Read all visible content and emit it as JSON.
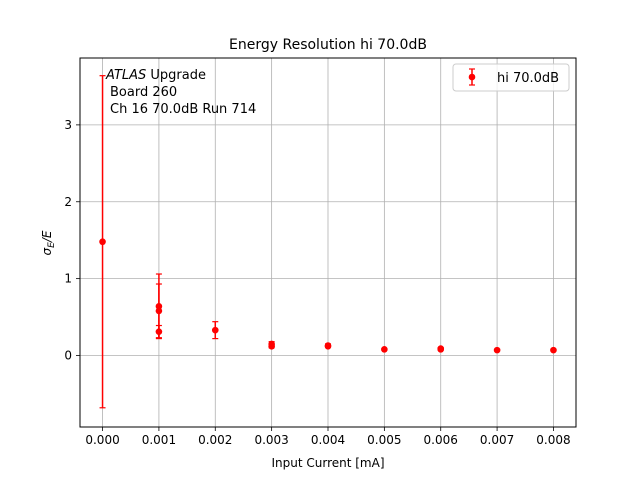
{
  "chart_data": {
    "type": "scatter",
    "title": "Energy Resolution hi 70.0dB",
    "xlabel": "Input Current [mA]",
    "ylabel_main": "σ",
    "ylabel_sub": "E",
    "ylabel_tail": "/E",
    "xlim": [
      -0.0004,
      0.0084
    ],
    "ylim": [
      -0.93,
      3.87
    ],
    "xticks": [
      0.0,
      0.001,
      0.002,
      0.003,
      0.004,
      0.005,
      0.006,
      0.007,
      0.008
    ],
    "xtick_labels": [
      "0.000",
      "0.001",
      "0.002",
      "0.003",
      "0.004",
      "0.005",
      "0.006",
      "0.007",
      "0.008"
    ],
    "yticks": [
      0,
      1,
      2,
      3
    ],
    "ytick_labels": [
      "0",
      "1",
      "2",
      "3"
    ],
    "grid": true,
    "legend_position": "top-right",
    "annotation": {
      "line1_italic": "ATLAS",
      "line1_rest": " Upgrade",
      "line2": "Board 260",
      "line3": "Ch 16 70.0dB  Run 714"
    },
    "series": [
      {
        "name": "hi 70.0dB",
        "color": "#ff0000",
        "points": [
          {
            "x": 0.0,
            "y": 1.48,
            "yerr_low": 2.16,
            "yerr_high": 2.16
          },
          {
            "x": 0.001,
            "y": 0.64,
            "yerr_low": 0.42,
            "yerr_high": 0.42
          },
          {
            "x": 0.001,
            "y": 0.58,
            "yerr_low": 0.35,
            "yerr_high": 0.35
          },
          {
            "x": 0.001,
            "y": 0.31,
            "yerr_low": 0.08,
            "yerr_high": 0.08
          },
          {
            "x": 0.002,
            "y": 0.33,
            "yerr_low": 0.11,
            "yerr_high": 0.11
          },
          {
            "x": 0.003,
            "y": 0.15,
            "yerr_low": 0.03,
            "yerr_high": 0.03
          },
          {
            "x": 0.003,
            "y": 0.12,
            "yerr_low": 0.02,
            "yerr_high": 0.02
          },
          {
            "x": 0.004,
            "y": 0.13,
            "yerr_low": 0.02,
            "yerr_high": 0.02
          },
          {
            "x": 0.004,
            "y": 0.12,
            "yerr_low": 0.01,
            "yerr_high": 0.01
          },
          {
            "x": 0.005,
            "y": 0.08,
            "yerr_low": 0.01,
            "yerr_high": 0.01
          },
          {
            "x": 0.006,
            "y": 0.09,
            "yerr_low": 0.01,
            "yerr_high": 0.01
          },
          {
            "x": 0.006,
            "y": 0.08,
            "yerr_low": 0.01,
            "yerr_high": 0.01
          },
          {
            "x": 0.007,
            "y": 0.07,
            "yerr_low": 0.01,
            "yerr_high": 0.01
          },
          {
            "x": 0.008,
            "y": 0.07,
            "yerr_low": 0.01,
            "yerr_high": 0.01
          }
        ]
      }
    ]
  }
}
